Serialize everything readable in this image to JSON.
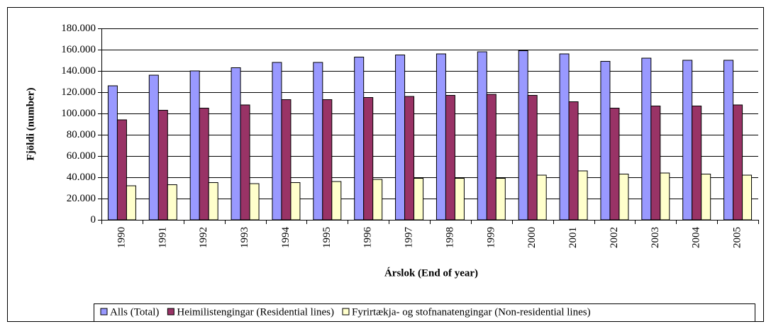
{
  "chart_data": {
    "type": "bar",
    "xlabel": "Árslok (End of year)",
    "ylabel": "Fjöldi (number)",
    "categories": [
      "1990",
      "1991",
      "1992",
      "1993",
      "1994",
      "1995",
      "1996",
      "1997",
      "1998",
      "1999",
      "2000",
      "2001",
      "2002",
      "2003",
      "2004",
      "2005"
    ],
    "series": [
      {
        "name": "Alls (Total)",
        "color": "#9999ff",
        "values": [
          126000,
          136000,
          140000,
          143000,
          148000,
          148000,
          153000,
          155000,
          156000,
          158000,
          159000,
          156000,
          149000,
          152000,
          150000,
          150000
        ]
      },
      {
        "name": "Heimilistengingar (Residential lines)",
        "color": "#993366",
        "values": [
          94000,
          103000,
          105000,
          108000,
          113000,
          113000,
          115000,
          116000,
          117000,
          118000,
          117000,
          111000,
          105000,
          107000,
          107000,
          108000
        ]
      },
      {
        "name": "Fyrirtækja- og stofnanatengingar (Non-residential lines)",
        "color": "#ffffcc",
        "values": [
          32000,
          33000,
          35000,
          34000,
          35000,
          36000,
          38000,
          39000,
          39000,
          39000,
          42000,
          46000,
          43000,
          44000,
          43000,
          42000
        ]
      }
    ],
    "ylim": [
      0,
      180000
    ],
    "yticks": [
      0,
      {
        "value": 20000,
        "label": "20.000"
      },
      {
        "value": 40000,
        "label": "40.000"
      },
      {
        "value": 60000,
        "label": "60.000"
      },
      {
        "value": 80000,
        "label": "80.000"
      },
      {
        "value": 100000,
        "label": "100.000"
      },
      {
        "value": 120000,
        "label": "120.000"
      },
      {
        "value": 140000,
        "label": "140.000"
      },
      {
        "value": 160000,
        "label": "160.000"
      },
      {
        "value": 180000,
        "label": "180.000"
      }
    ],
    "grid": true,
    "legend": "bottom"
  }
}
